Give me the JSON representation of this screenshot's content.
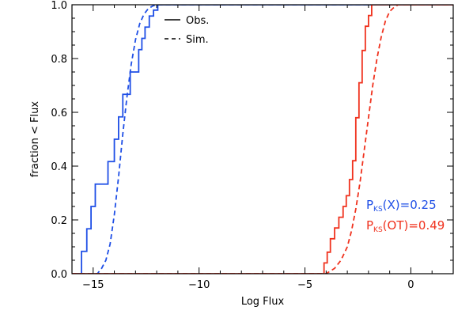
{
  "chart_data": {
    "type": "line",
    "xlabel": "Log Flux",
    "ylabel": "fraction < Flux",
    "xlim": [
      -16,
      2
    ],
    "ylim": [
      0,
      1
    ],
    "xticks": [
      -15,
      -10,
      -5,
      0
    ],
    "yticks": [
      0.0,
      0.2,
      0.4,
      0.6,
      0.8,
      1.0
    ],
    "xtick_labels": [
      "−15",
      "−10",
      "−5",
      "0"
    ],
    "ytick_labels": [
      "0.0",
      "0.2",
      "0.4",
      "0.6",
      "0.8",
      "1.0"
    ],
    "legend": {
      "placement": "top-left",
      "entries": [
        {
          "label": "Obs.",
          "style": "solid"
        },
        {
          "label": "Sim.",
          "style": "dashed"
        }
      ]
    },
    "annotations": [
      {
        "prefix": "P",
        "sub": "KS",
        "suffix": "(X)=0.25",
        "color": "#1f4fe6"
      },
      {
        "prefix": "P",
        "sub": "KS",
        "suffix": "(OT)=0.49",
        "color": "#f0321e"
      }
    ],
    "series": [
      {
        "color": "#1f4fe6",
        "style": "solid",
        "kind": "step",
        "x": [
          -16,
          -15.55,
          -15.55,
          -15.3,
          -15.3,
          -15.1,
          -15.1,
          -14.9,
          -14.9,
          -14.3,
          -14.3,
          -14.0,
          -14.0,
          -13.8,
          -13.8,
          -13.6,
          -13.6,
          -13.45,
          -13.45,
          -13.25,
          -13.25,
          -12.85,
          -12.85,
          -12.7,
          -12.7,
          -12.55,
          -12.55,
          -12.35,
          -12.35,
          -12.15,
          -12.15,
          -11.95,
          -11.95,
          2
        ],
        "y": [
          0,
          0,
          0.083,
          0.083,
          0.167,
          0.167,
          0.25,
          0.25,
          0.333,
          0.333,
          0.417,
          0.417,
          0.5,
          0.5,
          0.583,
          0.583,
          0.667,
          0.667,
          0.667,
          0.667,
          0.75,
          0.75,
          0.833,
          0.833,
          0.875,
          0.875,
          0.917,
          0.917,
          0.958,
          0.958,
          0.98,
          0.98,
          1.0,
          1.0
        ]
      },
      {
        "color": "#1f4fe6",
        "style": "dashed",
        "kind": "line",
        "x": [
          -16,
          -14.8,
          -14.6,
          -14.4,
          -14.2,
          -14.0,
          -13.8,
          -13.6,
          -13.4,
          -13.2,
          -13.0,
          -12.8,
          -12.6,
          -12.4,
          -12.2,
          -12.0,
          -11.8,
          -11.6,
          2
        ],
        "y": [
          0,
          0,
          0.02,
          0.05,
          0.11,
          0.22,
          0.36,
          0.52,
          0.66,
          0.78,
          0.87,
          0.93,
          0.965,
          0.985,
          0.995,
          1.0,
          1.0,
          1.0,
          1.0
        ]
      },
      {
        "color": "#f0321e",
        "style": "solid",
        "kind": "step",
        "x": [
          -16,
          -4.1,
          -4.1,
          -3.95,
          -3.95,
          -3.8,
          -3.8,
          -3.6,
          -3.6,
          -3.4,
          -3.4,
          -3.2,
          -3.2,
          -3.05,
          -3.05,
          -2.9,
          -2.9,
          -2.75,
          -2.75,
          -2.6,
          -2.6,
          -2.45,
          -2.45,
          -2.3,
          -2.3,
          -2.15,
          -2.15,
          -2.0,
          -2.0,
          -1.85,
          -1.85,
          -1.7,
          2
        ],
        "y": [
          0,
          0,
          0.04,
          0.04,
          0.08,
          0.08,
          0.13,
          0.13,
          0.17,
          0.17,
          0.21,
          0.21,
          0.25,
          0.25,
          0.29,
          0.29,
          0.35,
          0.35,
          0.42,
          0.42,
          0.58,
          0.58,
          0.71,
          0.71,
          0.83,
          0.83,
          0.92,
          0.92,
          0.96,
          0.96,
          1.0,
          1.0,
          1.0
        ]
      },
      {
        "color": "#f0321e",
        "style": "dashed",
        "kind": "line",
        "x": [
          -16,
          -4.0,
          -3.6,
          -3.3,
          -3.0,
          -2.8,
          -2.6,
          -2.4,
          -2.2,
          -2.0,
          -1.8,
          -1.6,
          -1.4,
          -1.2,
          -1.0,
          -0.8,
          -0.6,
          2
        ],
        "y": [
          0,
          0,
          0.02,
          0.05,
          0.1,
          0.16,
          0.24,
          0.34,
          0.46,
          0.58,
          0.7,
          0.8,
          0.88,
          0.94,
          0.975,
          0.99,
          1.0,
          1.0
        ]
      }
    ]
  }
}
